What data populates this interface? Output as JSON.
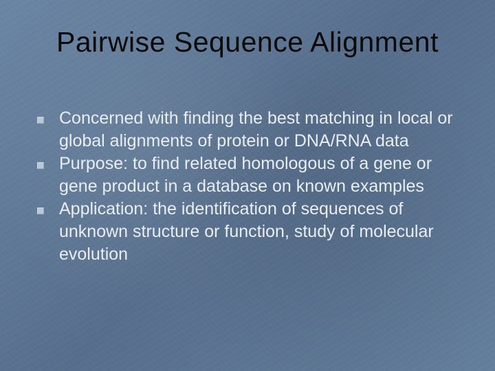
{
  "slide": {
    "title": "Pairwise Sequence Alignment",
    "bullets": [
      "Concerned with finding the best matching in local or global alignments of protein or DNA/RNA data",
      "Purpose: to find related homologous of a gene or gene product in a database on known examples",
      "Application: the identification of sequences of unknown structure or function, study of molecular evolution"
    ],
    "style": {
      "background_color": "#5f7a99",
      "title_color": "#0a0a0a",
      "title_fontsize": 41,
      "body_color": "#e9edf2",
      "body_fontsize": 25,
      "bullet_marker_color": "#b9c8d6",
      "bullet_marker_size": 10,
      "font_family": "Tahoma, Verdana, sans-serif"
    }
  }
}
